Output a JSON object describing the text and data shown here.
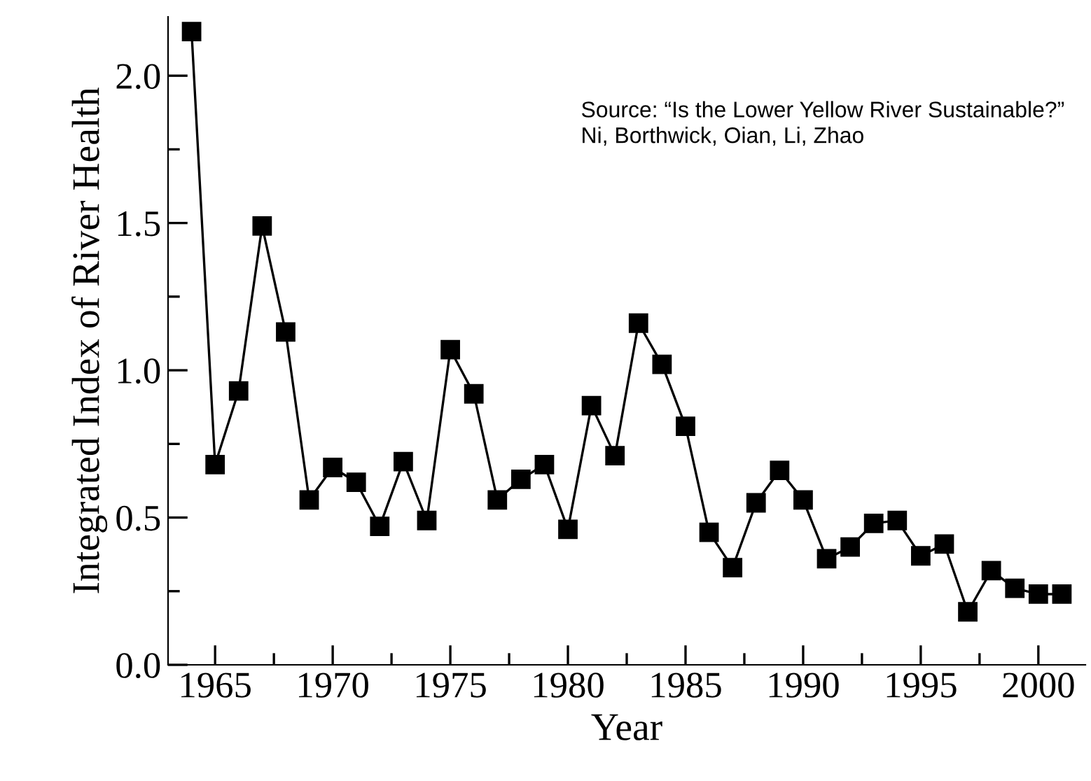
{
  "chart_data": {
    "type": "line",
    "xlabel": "Year",
    "ylabel": "Integrated Index of River Health",
    "x": [
      1964,
      1965,
      1966,
      1967,
      1968,
      1969,
      1970,
      1971,
      1972,
      1973,
      1974,
      1975,
      1976,
      1977,
      1978,
      1979,
      1980,
      1981,
      1982,
      1983,
      1984,
      1985,
      1986,
      1987,
      1988,
      1989,
      1990,
      1991,
      1992,
      1993,
      1994,
      1995,
      1996,
      1997,
      1998,
      1999,
      2000,
      2001
    ],
    "series": [
      {
        "color": "#000000",
        "values": [
          2.15,
          0.68,
          0.93,
          1.49,
          1.13,
          0.56,
          0.67,
          0.62,
          0.47,
          0.69,
          0.49,
          1.07,
          0.92,
          0.56,
          0.63,
          0.68,
          0.46,
          0.88,
          0.71,
          1.16,
          1.02,
          0.81,
          0.45,
          0.33,
          0.55,
          0.66,
          0.56,
          0.36,
          0.4,
          0.48,
          0.49,
          0.37,
          0.41,
          0.18,
          0.32,
          0.26,
          0.24,
          0.24
        ]
      }
    ],
    "xlim": [
      1963,
      2002
    ],
    "ylim": [
      0,
      2.2
    ],
    "xticks": [
      1965,
      1970,
      1975,
      1980,
      1985,
      1990,
      1995,
      2000
    ],
    "yticks": [
      {
        "value": 0,
        "label": "0.0"
      },
      {
        "value": 0.5,
        "label": "0.5"
      },
      {
        "value": 1,
        "label": "1.0"
      },
      {
        "value": 1.5,
        "label": "1.5"
      },
      {
        "value": 2,
        "label": "2.0"
      }
    ],
    "annotations": [
      "Source: “Is the Lower Yellow River Sustainable?”\nNi, Borthwick, Oian, Li, Zhao"
    ],
    "marker": "square",
    "line_style": "solid",
    "grid": false,
    "legend": false
  }
}
